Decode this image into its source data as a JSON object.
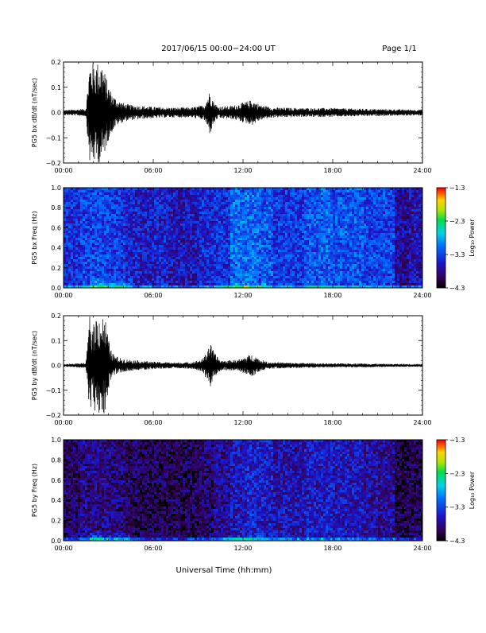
{
  "header": {
    "title": "2017/06/15  00:00−24:00 UT",
    "page": "Page 1/1"
  },
  "footer": {
    "xlabel": "Universal Time (hh:mm)"
  },
  "colorbar": {
    "label": "Log₁₀ Power",
    "ticks": [
      "−1.3",
      "−2.3",
      "−3.3",
      "−4.3"
    ],
    "tick_values": [
      -1.3,
      -2.3,
      -3.3,
      -4.3
    ]
  },
  "chart_data": [
    {
      "type": "line",
      "ylabel": "PG5 bx dB/dt (nT/sec)",
      "xlim": [
        0,
        24
      ],
      "ylim": [
        -0.2,
        0.2
      ],
      "x_ticks": [
        "00:00",
        "06:00",
        "12:00",
        "18:00",
        "24:00"
      ],
      "y_ticks": [
        "0.2",
        "0.1",
        "0.0",
        "−0.1",
        "−0.2"
      ],
      "y_tick_values": [
        0.2,
        0.1,
        0.0,
        -0.1,
        -0.2
      ],
      "series": [
        {
          "x_hours": [
            0,
            1.5,
            1.75,
            1.9,
            2.1,
            2.35,
            2.6,
            2.8,
            3.0,
            3.3,
            3.6,
            4.1,
            4.6,
            5.5,
            7,
            8.5,
            9.4,
            9.8,
            10.0,
            10.3,
            11,
            11.5,
            12.0,
            12.6,
            13.2,
            14,
            16,
            18,
            20,
            22,
            24
          ],
          "amp": [
            0.01,
            0.015,
            0.2,
            0.2,
            0.2,
            0.2,
            0.2,
            0.15,
            0.11,
            0.07,
            0.05,
            0.035,
            0.03,
            0.025,
            0.02,
            0.02,
            0.03,
            0.09,
            0.05,
            0.025,
            0.025,
            0.03,
            0.04,
            0.05,
            0.03,
            0.02,
            0.018,
            0.018,
            0.015,
            0.013,
            0.012
          ]
        }
      ]
    },
    {
      "type": "heatmap",
      "ylabel": "PG5 bx Freq (Hz)",
      "xlim": [
        0,
        24
      ],
      "ylim": [
        0,
        1.0
      ],
      "x_ticks": [
        "00:00",
        "06:00",
        "12:00",
        "18:00",
        "24:00"
      ],
      "y_ticks": [
        "1.0",
        "0.8",
        "0.6",
        "0.4",
        "0.2",
        "0.0"
      ],
      "y_tick_values": [
        1.0,
        0.8,
        0.6,
        0.4,
        0.2,
        0.0
      ],
      "clim": [
        -4.3,
        -1.3
      ],
      "background_log_power_by_hour": [
        -3.4,
        -3.3,
        -3.3,
        -3.35,
        -3.5,
        -3.55,
        -3.5,
        -3.6,
        -3.6,
        -3.45,
        -3.4,
        -3.1,
        -3.1,
        -3.2,
        -3.35,
        -3.35,
        -3.2,
        -3.15,
        -3.2,
        -3.2,
        -3.3,
        -3.3,
        -3.75,
        -3.65
      ]
    },
    {
      "type": "line",
      "ylabel": "PG5 by dB/dt (nT/sec)",
      "xlim": [
        0,
        24
      ],
      "ylim": [
        -0.2,
        0.2
      ],
      "x_ticks": [
        "00:00",
        "06:00",
        "12:00",
        "18:00",
        "24:00"
      ],
      "y_ticks": [
        "0.2",
        "0.1",
        "0.0",
        "−0.1",
        "−0.2"
      ],
      "y_tick_values": [
        0.2,
        0.1,
        0.0,
        -0.1,
        -0.2
      ],
      "series": [
        {
          "x_hours": [
            0,
            1.5,
            1.75,
            1.95,
            2.15,
            2.4,
            2.65,
            2.85,
            3.1,
            3.4,
            3.8,
            4.2,
            5,
            6,
            7.5,
            8.5,
            9.3,
            9.8,
            10.1,
            10.5,
            11,
            11.8,
            12.3,
            12.7,
            13.1,
            13.6,
            14.5,
            16,
            18,
            20,
            22,
            24
          ],
          "amp": [
            0.005,
            0.01,
            0.2,
            0.15,
            0.2,
            0.2,
            0.2,
            0.18,
            0.07,
            0.04,
            0.03,
            0.025,
            0.02,
            0.015,
            0.012,
            0.013,
            0.025,
            0.09,
            0.05,
            0.02,
            0.02,
            0.025,
            0.04,
            0.045,
            0.025,
            0.015,
            0.012,
            0.01,
            0.008,
            0.008,
            0.006,
            0.006
          ]
        }
      ]
    },
    {
      "type": "heatmap",
      "ylabel": "PG5 by Freq (Hz)",
      "xlim": [
        0,
        24
      ],
      "ylim": [
        0,
        1.0
      ],
      "x_ticks": [
        "00:00",
        "06:00",
        "12:00",
        "18:00",
        "24:00"
      ],
      "y_ticks": [
        "1.0",
        "0.8",
        "0.6",
        "0.4",
        "0.2",
        "0.0"
      ],
      "y_tick_values": [
        1.0,
        0.8,
        0.6,
        0.4,
        0.2,
        0.0
      ],
      "clim": [
        -4.3,
        -1.3
      ],
      "background_log_power_by_hour": [
        -3.9,
        -3.8,
        -3.8,
        -3.85,
        -3.95,
        -4.0,
        -4.0,
        -4.0,
        -4.0,
        -3.9,
        -3.75,
        -3.6,
        -3.5,
        -3.55,
        -3.65,
        -3.65,
        -3.55,
        -3.55,
        -3.6,
        -3.6,
        -3.7,
        -3.75,
        -4.05,
        -4.0
      ]
    }
  ]
}
